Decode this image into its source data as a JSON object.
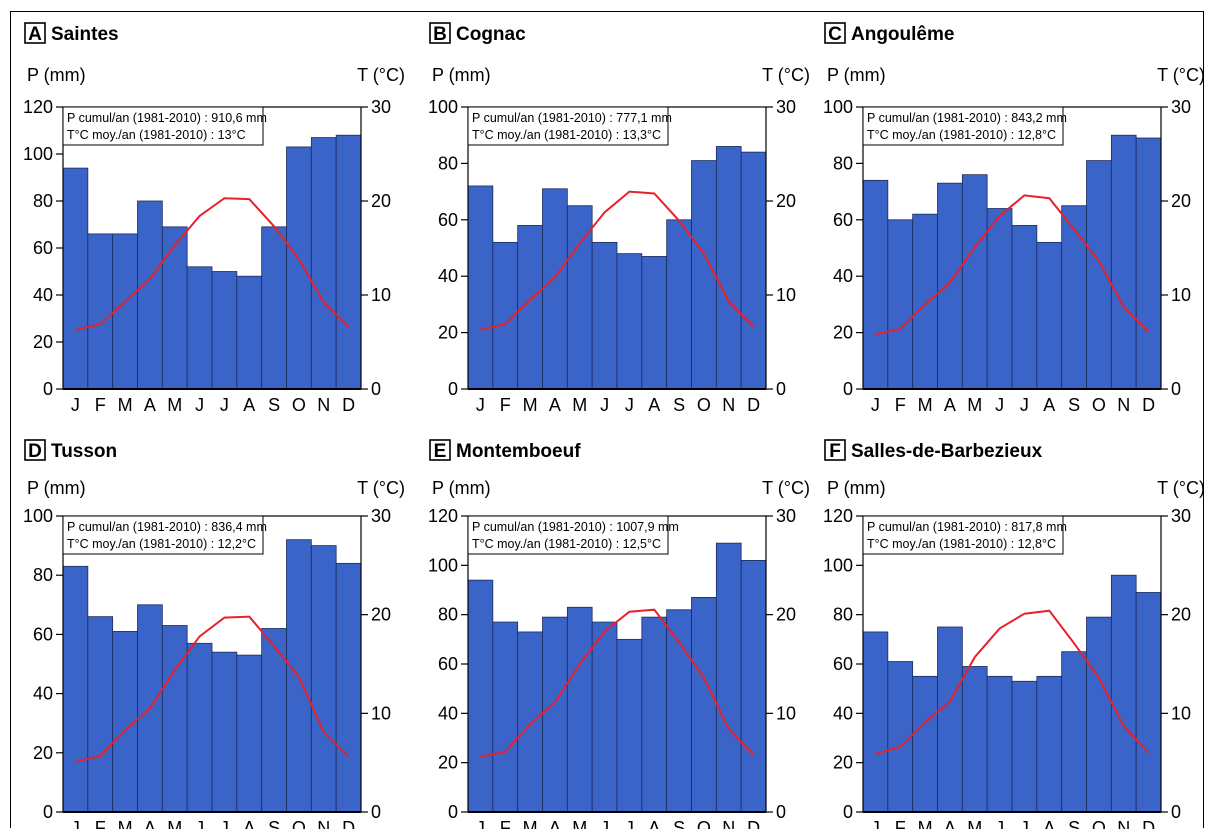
{
  "chart_data": [
    {
      "type": "bar",
      "letter": "A",
      "title": "Saintes",
      "ylabel": "P (mm)",
      "y2label": "T (°C)",
      "info_p": "P cumul/an (1981-2010) : 910,6 mm",
      "info_t": "T°C moy./an (1981-2010) : 13°C",
      "categories": [
        "J",
        "F",
        "M",
        "A",
        "M",
        "J",
        "J",
        "A",
        "S",
        "O",
        "N",
        "D"
      ],
      "ylim": [
        0,
        120
      ],
      "yticks": [
        0,
        20,
        40,
        60,
        80,
        100,
        120
      ],
      "y2lim": [
        0,
        30
      ],
      "y2ticks": [
        0,
        10,
        20,
        30
      ],
      "precipitation": [
        94,
        66,
        66,
        80,
        69,
        52,
        50,
        48,
        69,
        103,
        107,
        108
      ],
      "temperature": [
        6.3,
        6.9,
        9.3,
        11.7,
        15.3,
        18.4,
        20.3,
        20.2,
        17.3,
        13.8,
        9.2,
        6.6
      ],
      "bar_color": "#3b64c8",
      "line_color": "#e8202a"
    },
    {
      "type": "bar",
      "letter": "B",
      "title": "Cognac",
      "ylabel": "P (mm)",
      "y2label": "T (°C)",
      "info_p": "P cumul/an (1981-2010) : 777,1 mm",
      "info_t": "T°C moy./an (1981-2010) : 13,3°C",
      "categories": [
        "J",
        "F",
        "M",
        "A",
        "M",
        "J",
        "J",
        "A",
        "S",
        "O",
        "N",
        "D"
      ],
      "ylim": [
        0,
        100
      ],
      "yticks": [
        0,
        20,
        40,
        60,
        80,
        100
      ],
      "y2lim": [
        0,
        30
      ],
      "y2ticks": [
        0,
        10,
        20,
        30
      ],
      "precipitation": [
        72,
        52,
        58,
        71,
        65,
        52,
        48,
        47,
        60,
        81,
        86,
        84
      ],
      "temperature": [
        6.3,
        6.9,
        9.5,
        11.9,
        15.5,
        18.8,
        21.0,
        20.8,
        17.9,
        14.4,
        9.3,
        6.6
      ],
      "bar_color": "#3b64c8",
      "line_color": "#e8202a"
    },
    {
      "type": "bar",
      "letter": "C",
      "title": "Angoulême",
      "ylabel": "P (mm)",
      "y2label": "T (°C)",
      "info_p": "P cumul/an (1981-2010) : 843,2 mm",
      "info_t": "T°C moy./an (1981-2010) : 12,8°C",
      "categories": [
        "J",
        "F",
        "M",
        "A",
        "M",
        "J",
        "J",
        "A",
        "S",
        "O",
        "N",
        "D"
      ],
      "ylim": [
        0,
        100
      ],
      "yticks": [
        0,
        20,
        40,
        60,
        80,
        100
      ],
      "y2lim": [
        0,
        30
      ],
      "y2ticks": [
        0,
        10,
        20,
        30
      ],
      "precipitation": [
        74,
        60,
        62,
        73,
        76,
        64,
        58,
        52,
        65,
        81,
        90,
        89
      ],
      "temperature": [
        5.8,
        6.4,
        9.0,
        11.3,
        15.1,
        18.4,
        20.6,
        20.3,
        17.0,
        13.6,
        8.7,
        6.1
      ],
      "bar_color": "#3b64c8",
      "line_color": "#e8202a"
    },
    {
      "type": "bar",
      "letter": "D",
      "title": "Tusson",
      "ylabel": "P (mm)",
      "y2label": "T (°C)",
      "info_p": "P cumul/an (1981-2010) : 836,4 mm",
      "info_t": "T°C moy./an (1981-2010) : 12,2°C",
      "categories": [
        "J",
        "F",
        "M",
        "A",
        "M",
        "J",
        "J",
        "A",
        "S",
        "O",
        "N",
        "D"
      ],
      "ylim": [
        0,
        100
      ],
      "yticks": [
        0,
        20,
        40,
        60,
        80,
        100
      ],
      "y2lim": [
        0,
        30
      ],
      "y2ticks": [
        0,
        10,
        20,
        30
      ],
      "precipitation": [
        83,
        66,
        61,
        70,
        63,
        57,
        54,
        53,
        62,
        92,
        90,
        84
      ],
      "temperature": [
        5.1,
        5.7,
        8.3,
        10.5,
        14.4,
        17.8,
        19.7,
        19.8,
        16.8,
        13.7,
        8.1,
        5.6
      ],
      "bar_color": "#3b64c8",
      "line_color": "#e8202a"
    },
    {
      "type": "bar",
      "letter": "E",
      "title": "Montemboeuf",
      "ylabel": "P (mm)",
      "y2label": "T (°C)",
      "info_p": "P cumul/an (1981-2010) : 1007,9 mm",
      "info_t": "T°C moy./an (1981-2010) : 12,5°C",
      "categories": [
        "J",
        "F",
        "M",
        "A",
        "M",
        "J",
        "J",
        "A",
        "S",
        "O",
        "N",
        "D"
      ],
      "ylim": [
        0,
        120
      ],
      "yticks": [
        0,
        20,
        40,
        60,
        80,
        100,
        120
      ],
      "y2lim": [
        0,
        30
      ],
      "y2ticks": [
        0,
        10,
        20,
        30
      ],
      "precipitation": [
        94,
        77,
        73,
        79,
        83,
        77,
        70,
        79,
        82,
        87,
        109,
        102
      ],
      "temperature": [
        5.6,
        6.1,
        8.9,
        11.1,
        15.0,
        18.3,
        20.3,
        20.5,
        17.2,
        13.6,
        8.4,
        5.8
      ],
      "bar_color": "#3b64c8",
      "line_color": "#e8202a"
    },
    {
      "type": "bar",
      "letter": "F",
      "title": "Salles-de-Barbezieux",
      "ylabel": "P (mm)",
      "y2label": "T (°C)",
      "info_p": "P cumul/an (1981-2010) : 817,8 mm",
      "info_t": "T°C moy./an (1981-2010) : 12,8°C",
      "categories": [
        "J",
        "F",
        "M",
        "A",
        "M",
        "J",
        "J",
        "A",
        "S",
        "O",
        "N",
        "D"
      ],
      "ylim": [
        0,
        120
      ],
      "yticks": [
        0,
        20,
        40,
        60,
        80,
        100,
        120
      ],
      "y2lim": [
        0,
        30
      ],
      "y2ticks": [
        0,
        10,
        20,
        30
      ],
      "precipitation": [
        73,
        61,
        55,
        75,
        59,
        55,
        53,
        55,
        65,
        79,
        96,
        89
      ],
      "temperature": [
        5.9,
        6.6,
        9.1,
        11.2,
        15.7,
        18.6,
        20.1,
        20.4,
        17.1,
        13.6,
        8.7,
        6.0
      ],
      "bar_color": "#3b64c8",
      "line_color": "#e8202a"
    }
  ]
}
